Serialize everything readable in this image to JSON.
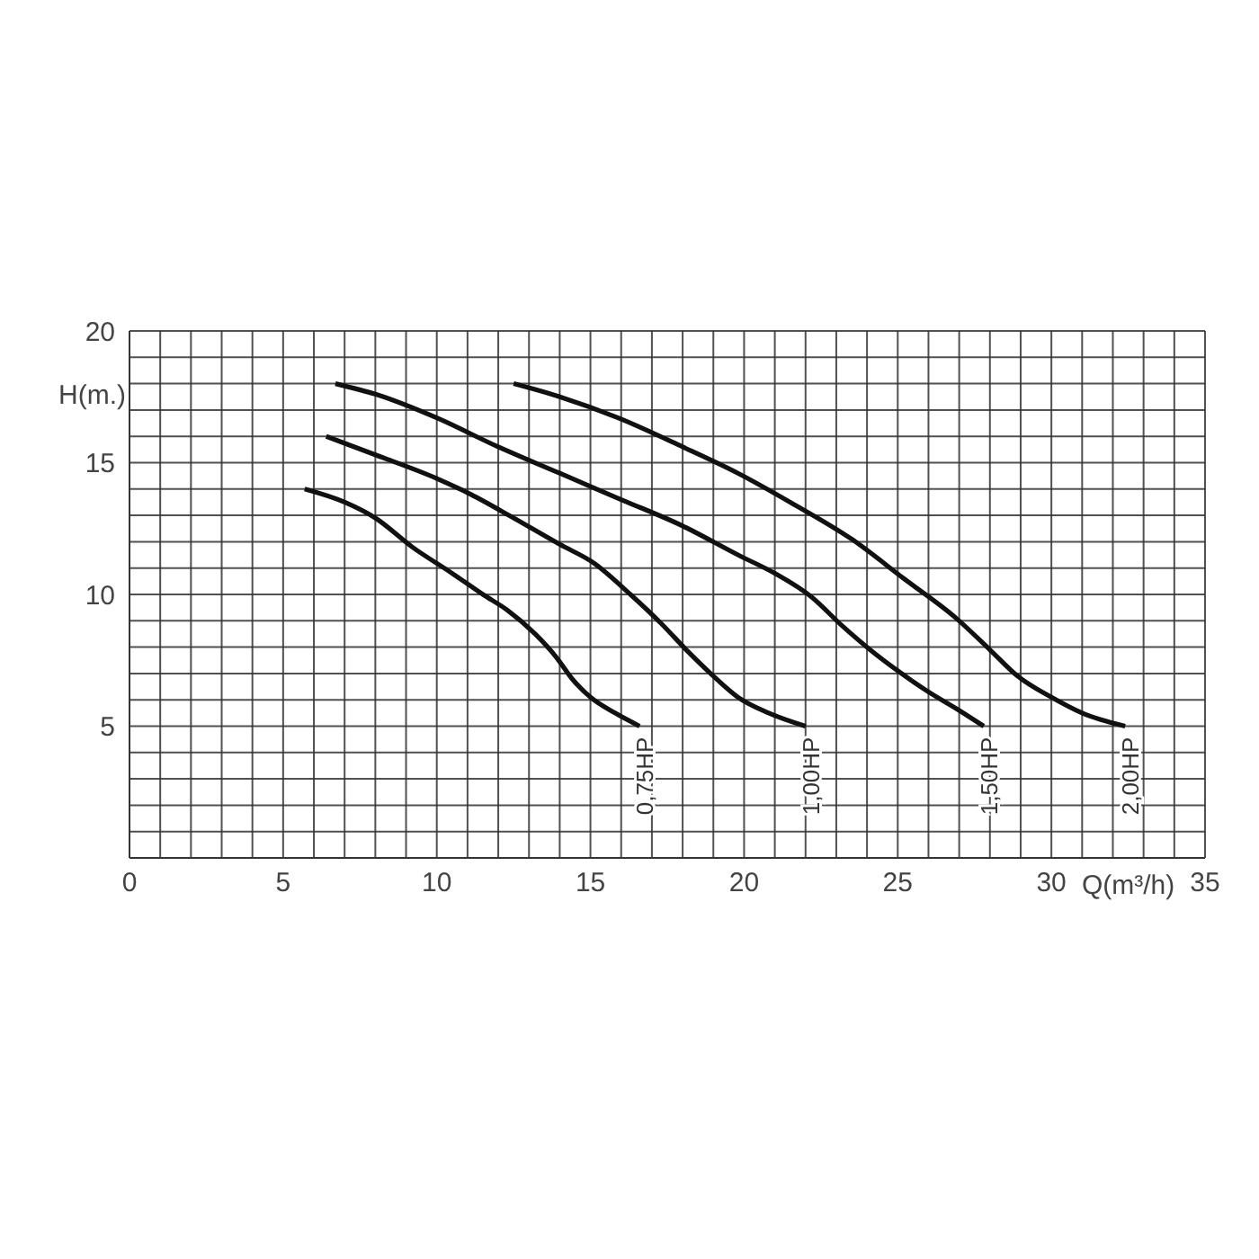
{
  "chart_data": {
    "type": "line",
    "xlabel": "Q(m³/h)",
    "ylabel": "H(m.)",
    "xlim": [
      0,
      35
    ],
    "ylim": [
      0,
      20
    ],
    "xticks": [
      0,
      {
        "value": 1,
        "label": null
      },
      {
        "value": 2,
        "label": null
      },
      {
        "value": 3,
        "label": null
      },
      {
        "value": 4,
        "label": null
      },
      5,
      {
        "value": 6,
        "label": null
      },
      {
        "value": 7,
        "label": null
      },
      {
        "value": 8,
        "label": null
      },
      {
        "value": 9,
        "label": null
      },
      10,
      {
        "value": 11,
        "label": null
      },
      {
        "value": 12,
        "label": null
      },
      {
        "value": 13,
        "label": null
      },
      {
        "value": 14,
        "label": null
      },
      15,
      {
        "value": 16,
        "label": null
      },
      {
        "value": 17,
        "label": null
      },
      {
        "value": 18,
        "label": null
      },
      {
        "value": 19,
        "label": null
      },
      20,
      {
        "value": 21,
        "label": null
      },
      {
        "value": 22,
        "label": null
      },
      {
        "value": 23,
        "label": null
      },
      {
        "value": 24,
        "label": null
      },
      25,
      {
        "value": 26,
        "label": null
      },
      {
        "value": 27,
        "label": null
      },
      {
        "value": 28,
        "label": null
      },
      {
        "value": 29,
        "label": null
      },
      30,
      {
        "value": 31,
        "label": null
      },
      {
        "value": 32,
        "label": null
      },
      {
        "value": 33,
        "label": null
      },
      {
        "value": 34,
        "label": null
      },
      35
    ],
    "yticks": [
      {
        "value": 0,
        "label": null
      },
      {
        "value": 1,
        "label": null
      },
      {
        "value": 2,
        "label": null
      },
      {
        "value": 3,
        "label": null
      },
      {
        "value": 4,
        "label": null
      },
      5,
      {
        "value": 6,
        "label": null
      },
      {
        "value": 7,
        "label": null
      },
      {
        "value": 8,
        "label": null
      },
      {
        "value": 9,
        "label": null
      },
      10,
      {
        "value": 11,
        "label": null
      },
      {
        "value": 12,
        "label": null
      },
      {
        "value": 13,
        "label": null
      },
      {
        "value": 14,
        "label": null
      },
      15,
      {
        "value": 16,
        "label": null
      },
      {
        "value": 17,
        "label": null
      },
      {
        "value": 18,
        "label": null
      },
      {
        "value": 19,
        "label": null
      },
      20
    ],
    "grid": true,
    "legend": false,
    "series": [
      {
        "name": "0,75HP",
        "color": "#111111",
        "x": [
          5.7,
          7,
          8,
          9.2,
          10.5,
          11.5,
          12.3,
          13.2,
          13.9,
          14.4,
          15,
          15.8,
          16.6
        ],
        "values": [
          14,
          13.5,
          12.9,
          11.8,
          10.8,
          10,
          9.4,
          8.5,
          7.6,
          6.8,
          6.1,
          5.5,
          5
        ]
      },
      {
        "name": "1,00HP",
        "color": "#111111",
        "x": [
          6.4,
          8,
          10,
          11.1,
          12.5,
          14,
          15.1,
          16.3,
          17.3,
          18.2,
          19,
          19.8,
          20.8,
          22
        ],
        "values": [
          16,
          15.3,
          14.4,
          13.8,
          12.9,
          11.9,
          11.2,
          10,
          8.9,
          7.8,
          6.9,
          6.1,
          5.5,
          5
        ]
      },
      {
        "name": "1,50HP",
        "color": "#111111",
        "x": [
          6.7,
          8,
          10,
          12,
          14,
          16,
          18,
          19.8,
          21,
          22.2,
          23.2,
          24.1,
          25,
          26,
          27,
          27.8
        ],
        "values": [
          18,
          17.6,
          16.7,
          15.6,
          14.6,
          13.6,
          12.6,
          11.5,
          10.8,
          9.9,
          8.8,
          7.9,
          7.1,
          6.3,
          5.6,
          5
        ]
      },
      {
        "name": "2,00HP",
        "color": "#111111",
        "x": [
          12.5,
          14,
          15.9,
          18,
          19.8,
          21.5,
          23.5,
          25.2,
          26.9,
          28,
          28.9,
          30,
          31,
          32.4
        ],
        "values": [
          18,
          17.5,
          16.7,
          15.6,
          14.6,
          13.5,
          12.1,
          10.6,
          9.1,
          7.9,
          6.9,
          6.1,
          5.5,
          5
        ]
      }
    ]
  }
}
